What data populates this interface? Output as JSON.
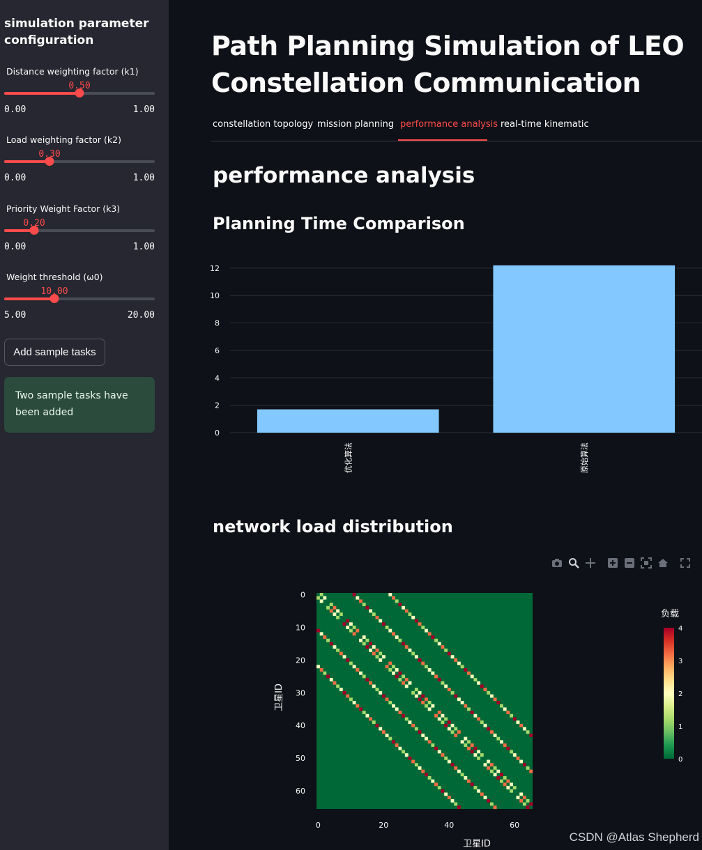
{
  "sidebar": {
    "title": "simulation parameter configuration",
    "sliders": [
      {
        "label": "Distance weighting factor (k1)",
        "value": "0.50",
        "min": "0.00",
        "max": "1.00",
        "fraction": 0.5
      },
      {
        "label": "Load weighting factor (k2)",
        "value": "0.30",
        "min": "0.00",
        "max": "1.00",
        "fraction": 0.3
      },
      {
        "label": "Priority Weight Factor (k3)",
        "value": "0.20",
        "min": "0.00",
        "max": "1.00",
        "fraction": 0.2
      },
      {
        "label": "Weight threshold (ω0)",
        "value": "10.00",
        "min": "5.00",
        "max": "20.00",
        "fraction": 0.3333
      }
    ],
    "add_button": "Add sample tasks",
    "success_message": "Two sample tasks have been added"
  },
  "main": {
    "title": "Path Planning Simulation of LEO Constellation Communication",
    "tabs": [
      {
        "label": "constellation topology"
      },
      {
        "label": "mission planning"
      },
      {
        "label": "performance analysis"
      },
      {
        "label": "real-time kinematic"
      }
    ],
    "section_heading": "performance analysis",
    "subheading_time": "Planning Time Comparison",
    "subheading_load": "network load distribution"
  },
  "toolbar_icons": [
    "camera-icon",
    "zoom-icon",
    "pan-icon",
    "zoom-in-icon",
    "zoom-out-icon",
    "autoscale-icon",
    "home-icon",
    "fullscreen-icon"
  ],
  "watermark": "CSDN @Atlas Shepherd",
  "colors": {
    "accent": "#ff4b4b",
    "bar": "#83c9ff",
    "success_bg": "#2b4b3d"
  },
  "chart_data": [
    {
      "type": "bar",
      "categories": [
        "优化算法",
        "原始算法"
      ],
      "values": [
        1.7,
        12.2
      ],
      "yticks": [
        0,
        2,
        4,
        6,
        8,
        10,
        12
      ],
      "ylim": [
        0,
        12.5
      ],
      "grid": true
    },
    {
      "type": "heatmap",
      "xlabel": "卫星ID",
      "ylabel": "卫星ID",
      "colorbar_title": "负载",
      "xticks": [
        0,
        20,
        40,
        60
      ],
      "yticks": [
        0,
        10,
        20,
        30,
        40,
        50,
        60
      ],
      "size": 66,
      "zrange": [
        0,
        4
      ],
      "colorbar_ticks": [
        0,
        1,
        2,
        3,
        4
      ],
      "colorscale": [
        "#006837",
        "#1a9850",
        "#66bd63",
        "#a6d96a",
        "#d9ef8b",
        "#ffffbf",
        "#fee08b",
        "#fdae61",
        "#f46d43",
        "#d73027",
        "#a50026"
      ],
      "bands": [
        {
          "offset": 1,
          "pattern": [
            1,
            2,
            0,
            1,
            3,
            2,
            1,
            0,
            4,
            2,
            1,
            3,
            0,
            2,
            1,
            4,
            2,
            3,
            1,
            2,
            0,
            3,
            1,
            2,
            4,
            1,
            3,
            2,
            0,
            1,
            2,
            4,
            3,
            1,
            2,
            0,
            3,
            2,
            1,
            4,
            2,
            1,
            3,
            0,
            2,
            1,
            3,
            4,
            2,
            1,
            0,
            2,
            3,
            1,
            2,
            4,
            1,
            3,
            2,
            1,
            0,
            2,
            3,
            1,
            4
          ]
        },
        {
          "offset": 11,
          "pattern": [
            4,
            2,
            3,
            1,
            4,
            2,
            1,
            3,
            2,
            4,
            1,
            2,
            3,
            2,
            1,
            4,
            3,
            2,
            1,
            2,
            4,
            3,
            1,
            2,
            2,
            3,
            4,
            1,
            2,
            3,
            1,
            4,
            2,
            2,
            3,
            1,
            4,
            2,
            3,
            1,
            2,
            4,
            3,
            2,
            1,
            2,
            3,
            4,
            1,
            2,
            3,
            2,
            4,
            1,
            3
          ]
        },
        {
          "offset": 22,
          "pattern": [
            2,
            3,
            1,
            4,
            2,
            3,
            1,
            2,
            4,
            3,
            1,
            2,
            3,
            4,
            1,
            2,
            3,
            1,
            4,
            2,
            3,
            2,
            1,
            4,
            3,
            2,
            1,
            2,
            4,
            3,
            1,
            2,
            3,
            4,
            1,
            2,
            3,
            1,
            4,
            2,
            3,
            2,
            1,
            4
          ]
        }
      ]
    }
  ]
}
